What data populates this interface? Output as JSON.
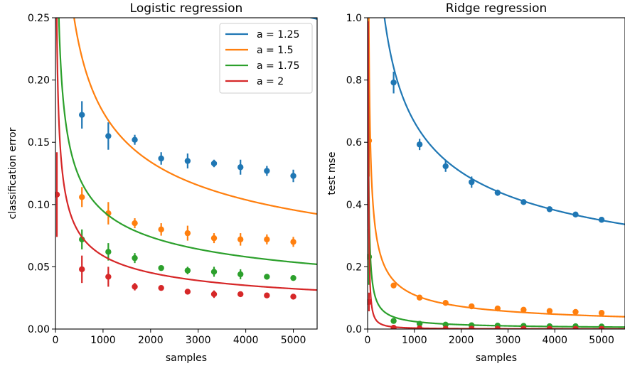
{
  "chart_data": [
    {
      "type": "scatter",
      "title": "Logistic regression",
      "xlabel": "samples",
      "ylabel": "classification error",
      "xlim": [
        0,
        5500
      ],
      "ylim": [
        0,
        0.25
      ],
      "xticks": [
        "0",
        "1000",
        "2000",
        "3000",
        "4000",
        "5000"
      ],
      "yticks": [
        "0.00",
        "0.05",
        "0.10",
        "0.15",
        "0.20",
        "0.25"
      ],
      "legend": "top-right",
      "series": [
        {
          "name": "a = 1.25",
          "color": "#1f77b4",
          "fit": {
            "c": 0.034,
            "b": 1.43,
            "p": 0.22
          },
          "points": [
            [
              556,
              0.172,
              0.011
            ],
            [
              1111,
              0.155,
              0.011
            ],
            [
              1667,
              0.152,
              0.004
            ],
            [
              2222,
              0.137,
              0.005
            ],
            [
              2778,
              0.135,
              0.006
            ],
            [
              3333,
              0.133,
              0.003
            ],
            [
              3889,
              0.13,
              0.006
            ],
            [
              4444,
              0.127,
              0.004
            ],
            [
              5000,
              0.123,
              0.005
            ]
          ]
        },
        {
          "name": "a = 1.5",
          "color": "#ff7f0e",
          "fit": {
            "c": 0.0085,
            "b": 2.63,
            "p": 0.4
          },
          "points": [
            [
              556,
              0.106,
              0.008
            ],
            [
              1111,
              0.093,
              0.009
            ],
            [
              1667,
              0.085,
              0.004
            ],
            [
              2222,
              0.08,
              0.005
            ],
            [
              2778,
              0.077,
              0.006
            ],
            [
              3333,
              0.073,
              0.004
            ],
            [
              3889,
              0.072,
              0.005
            ],
            [
              4444,
              0.072,
              0.004
            ],
            [
              5000,
              0.07,
              0.004
            ]
          ]
        },
        {
          "name": "a = 1.75",
          "color": "#2ca02c",
          "fit": {
            "c": 0.005,
            "b": 1.24,
            "p": 0.38
          },
          "points": [
            [
              556,
              0.072,
              0.008
            ],
            [
              1111,
              0.062,
              0.007
            ],
            [
              1667,
              0.057,
              0.004
            ],
            [
              2222,
              0.049,
              0.002
            ],
            [
              2778,
              0.047,
              0.003
            ],
            [
              3333,
              0.046,
              0.004
            ],
            [
              3889,
              0.044,
              0.004
            ],
            [
              4444,
              0.042,
              0.002
            ],
            [
              5000,
              0.041,
              0.002
            ]
          ]
        },
        {
          "name": "a = 2",
          "color": "#d62728",
          "fit": {
            "c": 0.005,
            "b": 0.98,
            "p": 0.42
          },
          "points": [
            [
              30,
              0.108,
              0.034
            ],
            [
              556,
              0.048,
              0.011
            ],
            [
              1111,
              0.042,
              0.008
            ],
            [
              1667,
              0.034,
              0.003
            ],
            [
              2222,
              0.033,
              0.002
            ],
            [
              2778,
              0.03,
              0.002
            ],
            [
              3333,
              0.028,
              0.003
            ],
            [
              3889,
              0.028,
              0.002
            ],
            [
              4444,
              0.027,
              0.002
            ],
            [
              5000,
              0.026,
              0.002
            ]
          ]
        }
      ]
    },
    {
      "type": "scatter",
      "title": "Ridge regression",
      "xlabel": "samples",
      "ylabel": "test mse",
      "xlim": [
        0,
        5500
      ],
      "ylim": [
        0,
        1.0
      ],
      "xticks": [
        "0",
        "1000",
        "2000",
        "3000",
        "4000",
        "5000"
      ],
      "yticks": [
        "0.0",
        "0.2",
        "0.4",
        "0.6",
        "0.8",
        "1.0"
      ],
      "series": [
        {
          "name": "a = 1.25",
          "color": "#1f77b4",
          "fit": {
            "c": 0.0,
            "b": 10.54,
            "p": 0.4
          },
          "points": [
            [
              556,
              0.792,
              0.035
            ],
            [
              1111,
              0.593,
              0.018
            ],
            [
              1667,
              0.523,
              0.018
            ],
            [
              2222,
              0.472,
              0.018
            ],
            [
              2778,
              0.438,
              0.01
            ],
            [
              3333,
              0.408,
              0.008
            ],
            [
              3889,
              0.385,
              0.007
            ],
            [
              4444,
              0.368,
              0.007
            ],
            [
              5000,
              0.351,
              0.007
            ]
          ]
        },
        {
          "name": "a = 1.5",
          "color": "#ff7f0e",
          "fit": {
            "c": 0.0,
            "b": 6.93,
            "p": 0.6
          },
          "points": [
            [
              30,
              0.605,
              0.115
            ],
            [
              556,
              0.14,
              0.005
            ],
            [
              1111,
              0.101,
              0.005
            ],
            [
              1667,
              0.084,
              0.003
            ],
            [
              2222,
              0.073,
              0.003
            ],
            [
              2778,
              0.066,
              0.002
            ],
            [
              3333,
              0.062,
              0.002
            ],
            [
              3889,
              0.058,
              0.002
            ],
            [
              4444,
              0.055,
              0.002
            ],
            [
              5000,
              0.052,
              0.002
            ]
          ]
        },
        {
          "name": "a = 1.75",
          "color": "#2ca02c",
          "fit": {
            "c": 0.0,
            "b": 6.11,
            "p": 0.8
          },
          "points": [
            [
              30,
              0.232,
              0.09
            ],
            [
              556,
              0.026,
              0.003
            ],
            [
              1111,
              0.017,
              0.002
            ],
            [
              1667,
              0.014,
              0.001
            ],
            [
              2222,
              0.012,
              0.001
            ],
            [
              2778,
              0.011,
              0.001
            ],
            [
              3333,
              0.01,
              0.001
            ],
            [
              3889,
              0.009,
              0.001
            ],
            [
              4444,
              0.009,
              0.001
            ],
            [
              5000,
              0.008,
              0.001
            ]
          ]
        },
        {
          "name": "a = 2",
          "color": "#d62728",
          "fit": {
            "c": 0.0,
            "b": 25.0,
            "p": 1.3
          },
          "points": [
            [
              30,
              0.087,
              0.03
            ],
            [
              556,
              0.004,
              0.001
            ],
            [
              1111,
              0.002,
              0.001
            ],
            [
              1667,
              0.001,
              0.0005
            ],
            [
              2222,
              0.001,
              0.0005
            ],
            [
              2778,
              0.001,
              0.0005
            ],
            [
              3333,
              0.001,
              0.0005
            ],
            [
              3889,
              0.0005,
              0.0003
            ],
            [
              4444,
              0.0005,
              0.0003
            ],
            [
              5000,
              0.0005,
              0.0003
            ]
          ]
        }
      ]
    }
  ]
}
